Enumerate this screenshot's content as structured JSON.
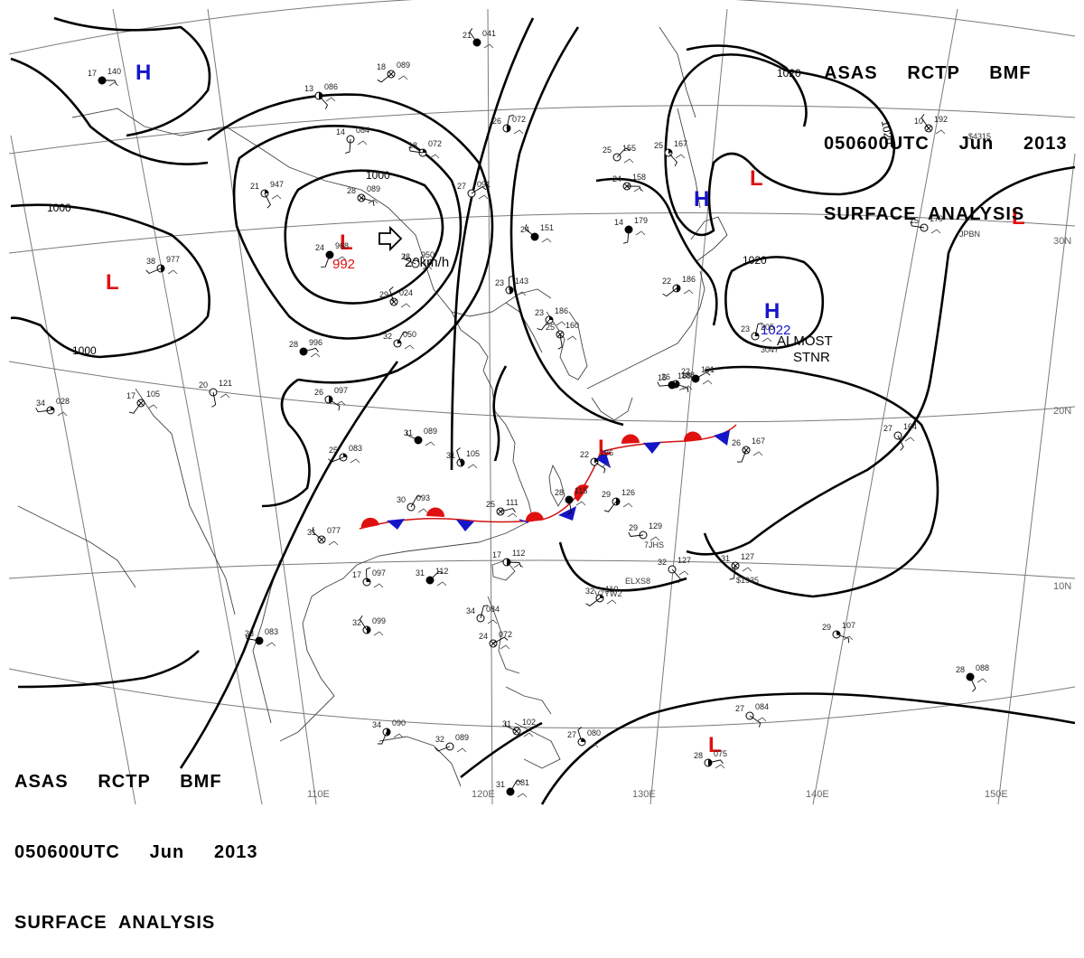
{
  "header_top": {
    "line1": "ASAS     RCTP     BMF",
    "line2": "050600UTC     Jun     2013",
    "line3": "SURFACE  ANALYSIS"
  },
  "header_bottom": {
    "line1": "ASAS     RCTP     BMF",
    "line2": "050600UTC     Jun     2013",
    "line3": "SURFACE  ANALYSIS"
  },
  "longitude_labels": [
    "110E",
    "120E",
    "130E",
    "140E",
    "150E"
  ],
  "latitude_labels": [
    "30N",
    "20N",
    "10N"
  ],
  "isobar_labels": [
    "1000",
    "1000",
    "1000",
    "1020",
    "1020",
    "1020"
  ],
  "pressure_centers": [
    {
      "type": "H",
      "color": "#1515c8"
    },
    {
      "type": "L",
      "color": "#e01010"
    },
    {
      "type": "L",
      "color": "#e01010",
      "value": "992"
    },
    {
      "type": "H",
      "color": "#1515c8"
    },
    {
      "type": "L",
      "color": "#e01010"
    },
    {
      "type": "L",
      "color": "#e01010"
    },
    {
      "type": "H",
      "color": "#1515c8",
      "value": "1022"
    },
    {
      "type": "L",
      "color": "#e01010"
    },
    {
      "type": "L",
      "color": "#e01010"
    }
  ],
  "annotations": {
    "motion": "20km/h",
    "stationary_1": "ALMOST",
    "stationary_2": "STNR"
  },
  "stations": [
    {
      "t": "17",
      "p": "140"
    },
    {
      "t": "13",
      "p": "086"
    },
    {
      "t": "14",
      "p": "084"
    },
    {
      "t": "18",
      "p": "089"
    },
    {
      "t": "18",
      "p": "072"
    },
    {
      "t": "21",
      "p": "041"
    },
    {
      "t": "26",
      "p": "072"
    },
    {
      "t": "27",
      "p": "091"
    },
    {
      "t": "28",
      "p": "089"
    },
    {
      "t": "21",
      "p": "947"
    },
    {
      "t": "24",
      "p": "968"
    },
    {
      "t": "38",
      "p": "977"
    },
    {
      "t": "28",
      "p": "950"
    },
    {
      "t": "29",
      "p": "024"
    },
    {
      "t": "32",
      "p": "050"
    },
    {
      "t": "28",
      "p": "996"
    },
    {
      "t": "26",
      "p": "097"
    },
    {
      "t": "20",
      "p": "121"
    },
    {
      "t": "17",
      "p": "105"
    },
    {
      "t": "34",
      "p": "028"
    },
    {
      "t": "24",
      "p": "151"
    },
    {
      "t": "23",
      "p": "143"
    },
    {
      "t": "25",
      "p": "155"
    },
    {
      "t": "24",
      "p": "158"
    },
    {
      "t": "25",
      "p": "167"
    },
    {
      "t": "14",
      "p": "179"
    },
    {
      "t": "22",
      "p": "186"
    },
    {
      "t": "15",
      "p": "179"
    },
    {
      "t": "10",
      "p": "192"
    },
    {
      "t": "23",
      "p": "205"
    },
    {
      "t": "22",
      "p": "191"
    },
    {
      "t": "26",
      "p": "188"
    },
    {
      "t": "27",
      "p": "164"
    },
    {
      "t": "26",
      "p": "167"
    },
    {
      "t": "25",
      "p": "083"
    },
    {
      "t": "31",
      "p": "089"
    },
    {
      "t": "31",
      "p": "105"
    },
    {
      "t": "30",
      "p": "093"
    },
    {
      "t": "25",
      "p": "111"
    },
    {
      "t": "22",
      "p": "126"
    },
    {
      "t": "28",
      "p": "115"
    },
    {
      "t": "29",
      "p": "126"
    },
    {
      "t": "29",
      "p": "129"
    },
    {
      "t": "31",
      "p": "077"
    },
    {
      "t": "17",
      "p": "097"
    },
    {
      "t": "31",
      "p": "112"
    },
    {
      "t": "17",
      "p": "112"
    },
    {
      "t": "32",
      "p": "127"
    },
    {
      "t": "31",
      "p": "127"
    },
    {
      "t": "32",
      "p": "110"
    },
    {
      "t": "33",
      "p": "083"
    },
    {
      "t": "32",
      "p": "099"
    },
    {
      "t": "34",
      "p": "084"
    },
    {
      "t": "24",
      "p": "072"
    },
    {
      "t": "29",
      "p": "107"
    },
    {
      "t": "28",
      "p": "088"
    },
    {
      "t": "34",
      "p": "090"
    },
    {
      "t": "32",
      "p": "089"
    },
    {
      "t": "31",
      "p": "102"
    },
    {
      "t": "27",
      "p": "080"
    },
    {
      "t": "31",
      "p": "081"
    },
    {
      "t": "28",
      "p": "075"
    },
    {
      "t": "27",
      "p": "084"
    },
    {
      "t": "25",
      "p": "160"
    },
    {
      "t": "23",
      "p": "186"
    },
    {
      "t": "15",
      "p": "188"
    }
  ],
  "call_signs": [
    "7JHS",
    "ELXS8",
    "V7YW2",
    "$4315",
    "$1935",
    "JPBN",
    "3047"
  ]
}
